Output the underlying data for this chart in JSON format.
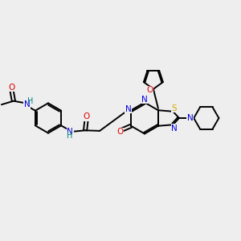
{
  "bg_color": "#eeeeee",
  "bond_color": "#000000",
  "atom_colors": {
    "N": "#0000dd",
    "O": "#dd0000",
    "S": "#ccaa00",
    "H": "#008080",
    "C": "#000000"
  }
}
